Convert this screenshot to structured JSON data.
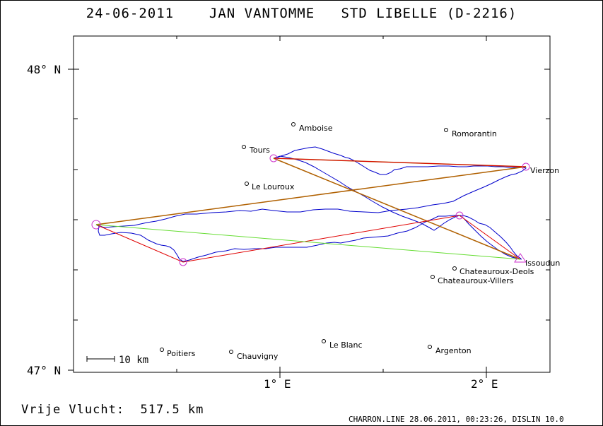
{
  "title": {
    "date": "24-06-2011",
    "pilot": "JAN VANTOMME",
    "glider": "STD LIBELLE (D-2216)"
  },
  "axes": {
    "lat_top": "48° N",
    "lat_bottom": "47° N",
    "lon_1": "1° E",
    "lon_2": "2° E"
  },
  "scale_bar_label": "10 km",
  "towns": {
    "amboise": "Amboise",
    "romorantin": "Romorantin",
    "tours": "Tours",
    "vierzon": "Vierzon",
    "le_louroux": "Le Louroux",
    "issoudun": "Issoudun",
    "chateauroux_deols": "Chateauroux-Deols",
    "chateauroux_villers": "Chateauroux-Villers",
    "poitiers": "Poitiers",
    "chauvigny": "Chauvigny",
    "le_blanc": "Le Blanc",
    "argenton": "Argenton"
  },
  "footer": {
    "free_flight": "Vrije Vlucht:  517.5 km",
    "credit": "CHARRON.LINE 28.06.2011, 00:23:26, DISLIN 10.0"
  },
  "colors": {
    "track": "#0000cc",
    "leg_red": "#e00000",
    "leg_orange": "#b06000",
    "leg_green": "#66dd33",
    "turnpoint": "#cc33cc"
  }
}
